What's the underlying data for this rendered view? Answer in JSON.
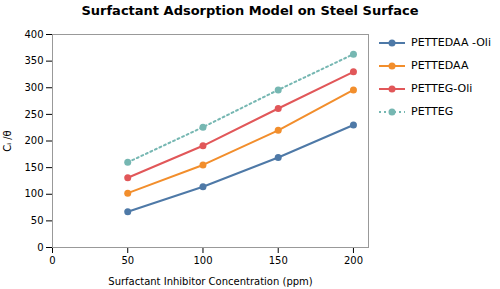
{
  "chart_data": {
    "type": "line",
    "title": "Surfactant Adsorption Model on Steel Surface",
    "xlabel": "Surfactant Inhibitor Concentration (ppm)",
    "ylabel": "Cᵢ /θ",
    "x": [
      50,
      100,
      150,
      200
    ],
    "xlim": [
      0,
      210
    ],
    "ylim": [
      0,
      400
    ],
    "xticks": [
      0,
      50,
      100,
      150,
      200
    ],
    "yticks": [
      0,
      50,
      100,
      150,
      200,
      250,
      300,
      350,
      400
    ],
    "grid": false,
    "legend": "right",
    "marker": "circle",
    "series": [
      {
        "name": "PETTEDAA -Oli",
        "values": [
          67,
          114,
          169,
          230
        ],
        "line_style": "solid"
      },
      {
        "name": "PETTEDAA",
        "values": [
          102,
          155,
          220,
          296
        ],
        "line_style": "solid"
      },
      {
        "name": "PETTEG-Oli",
        "values": [
          131,
          191,
          261,
          330
        ],
        "line_style": "solid"
      },
      {
        "name": "PETTEG",
        "values": [
          160,
          226,
          296,
          363
        ],
        "line_style": "dotted"
      }
    ]
  }
}
